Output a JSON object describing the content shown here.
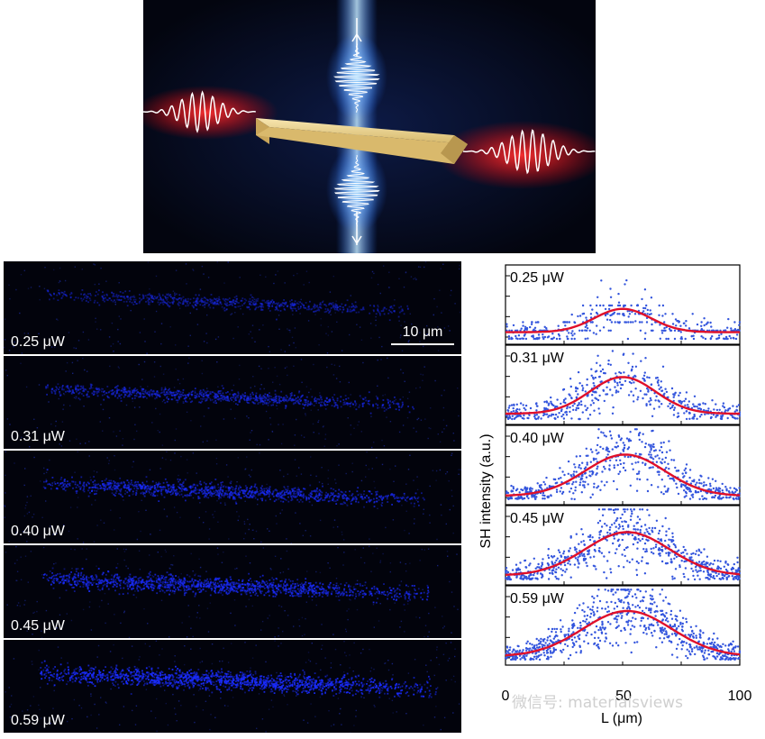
{
  "figure": {
    "illustration_alt": "nanowire second harmonic generation schematic",
    "panels": [
      {
        "power": "0.25 μW",
        "brightness": 0.25
      },
      {
        "power": "0.31 μW",
        "brightness": 0.45
      },
      {
        "power": "0.40 μW",
        "brightness": 0.65
      },
      {
        "power": "0.45 μW",
        "brightness": 0.8
      },
      {
        "power": "0.59 μW",
        "brightness": 1.0
      }
    ],
    "scalebar_label": "10 μm",
    "colors": {
      "signal": "#1a2cff",
      "fit": "#e0102a",
      "points": "#3355dd",
      "laser": "#ff2020",
      "sh_beam": "#44a8ff",
      "wire": "#e8cf88"
    }
  },
  "chart_data": {
    "type": "scatter",
    "title": "",
    "xlabel": "L (μm)",
    "ylabel": "SH intensity (a.u.)",
    "xlim": [
      0,
      100
    ],
    "x_ticks": [
      "0",
      "50",
      "100"
    ],
    "series": [
      {
        "name": "0.25 μW",
        "fit_center": 50,
        "fit_sigma": 12,
        "fit_amplitude": 0.35,
        "baseline": 0.1
      },
      {
        "name": "0.31 μW",
        "fit_center": 50,
        "fit_sigma": 14,
        "fit_amplitude": 0.55,
        "baseline": 0.08
      },
      {
        "name": "0.40 μW",
        "fit_center": 51,
        "fit_sigma": 17,
        "fit_amplitude": 0.62,
        "baseline": 0.05
      },
      {
        "name": "0.45 μW",
        "fit_center": 52,
        "fit_sigma": 18,
        "fit_amplitude": 0.65,
        "baseline": 0.06
      },
      {
        "name": "0.59 μW",
        "fit_center": 52,
        "fit_sigma": 19,
        "fit_amplitude": 0.68,
        "baseline": 0.05
      }
    ]
  },
  "watermark": "微信号: materialsviews"
}
